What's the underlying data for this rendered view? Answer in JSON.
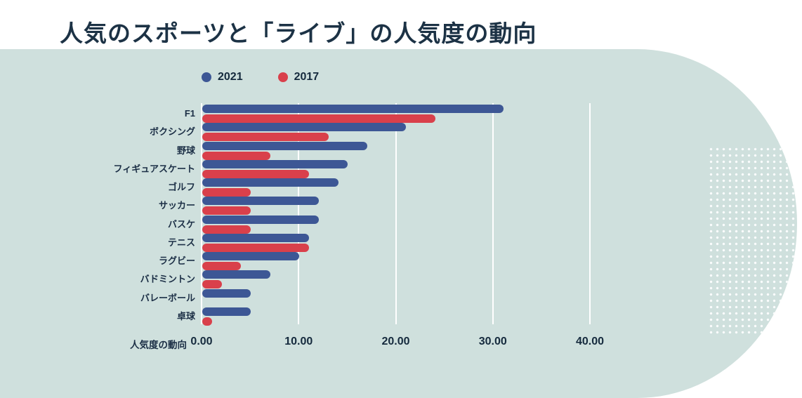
{
  "title": "人気のスポーツと「ライブ」の人気度の動向",
  "legend": {
    "items": [
      {
        "label": "2021",
        "color": "#3d5795"
      },
      {
        "label": "2017",
        "color": "#d9404b"
      }
    ]
  },
  "x_axis": {
    "label": "人気度の動向",
    "tick_labels": [
      "0.00",
      "10.00",
      "20.00",
      "30.00",
      "40.00"
    ],
    "tick_values": [
      0,
      10,
      20,
      30,
      40
    ]
  },
  "colors": {
    "panel_background": "#cfe0dd",
    "page_background": "#ffffff",
    "title_text": "#1c3245",
    "label_text": "#1b2e45",
    "gridline": "#ffffff",
    "series_2021": "#3d5795",
    "series_2017": "#d9404b"
  },
  "chart_data": {
    "type": "bar",
    "orientation": "horizontal",
    "title": "人気のスポーツと「ライブ」の人気度の動向",
    "xlabel": "人気度の動向",
    "ylabel": "",
    "xlim": [
      0,
      40
    ],
    "grid": true,
    "legend_position": "top-left",
    "categories": [
      "F1",
      "ボクシング",
      "野球",
      "フィギュアスケート",
      "ゴルフ",
      "サッカー",
      "バスケ",
      "テニス",
      "ラグビー",
      "バドミントン",
      "バレーボール",
      "卓球"
    ],
    "series": [
      {
        "name": "2021",
        "color": "#3d5795",
        "values": [
          31,
          21,
          17,
          15,
          14,
          12,
          12,
          11,
          10,
          7,
          5,
          5
        ]
      },
      {
        "name": "2017",
        "color": "#d9404b",
        "values": [
          24,
          13,
          7,
          11,
          5,
          5,
          5,
          11,
          4,
          2,
          0,
          1
        ]
      }
    ]
  }
}
